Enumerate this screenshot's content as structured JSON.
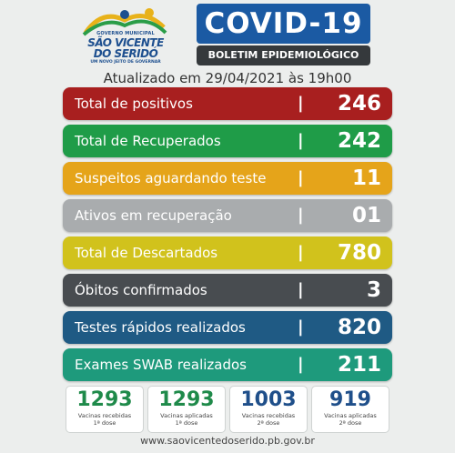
{
  "header": {
    "logo": {
      "gov": "GOVERNO MUNICIPAL",
      "city_line1": "SÃO VICENTE",
      "city_line2": "DO SERIDÓ",
      "slogan": "UM NOVO JEITO DE GOVERNAR"
    },
    "title": "COVID-19",
    "subtitle": "BOLETIM EPIDEMIOLÓGICO"
  },
  "updated": "Atualizado em 29/04/2021 às 19h00",
  "stats": [
    {
      "label": "Total de positivos",
      "value": "246",
      "color": "#a81f1f"
    },
    {
      "label": "Total de Recuperados",
      "value": "242",
      "color": "#1f9c48"
    },
    {
      "label": "Suspeitos aguardando teste",
      "value": "11",
      "color": "#e5a41a"
    },
    {
      "label": "Ativos em recuperação",
      "value": "01",
      "color": "#a9acae"
    },
    {
      "label": "Total de Descartados",
      "value": "780",
      "color": "#d1c21c"
    },
    {
      "label": "Óbitos confirmados",
      "value": "3",
      "color": "#484c50"
    },
    {
      "label": "Testes rápidos realizados",
      "value": "820",
      "color": "#1f5a84"
    },
    {
      "label": "Exames SWAB realizados",
      "value": "211",
      "color": "#1e9a7c"
    }
  ],
  "separator": "|",
  "vaccines": [
    {
      "value": "1293",
      "line1": "Vacinas recebidas",
      "line2": "1ª dose",
      "color": "#1f8a4a"
    },
    {
      "value": "1293",
      "line1": "Vacinas aplicadas",
      "line2": "1ª dose",
      "color": "#1f8a4a"
    },
    {
      "value": "1003",
      "line1": "Vacinas recebidas",
      "line2": "2ª dose",
      "color": "#1f4f8a"
    },
    {
      "value": "919",
      "line1": "Vacinas aplicadas",
      "line2": "2ª dose",
      "color": "#1f4f8a"
    }
  ],
  "footer": "www.saovicentedoserido.pb.gov.br"
}
